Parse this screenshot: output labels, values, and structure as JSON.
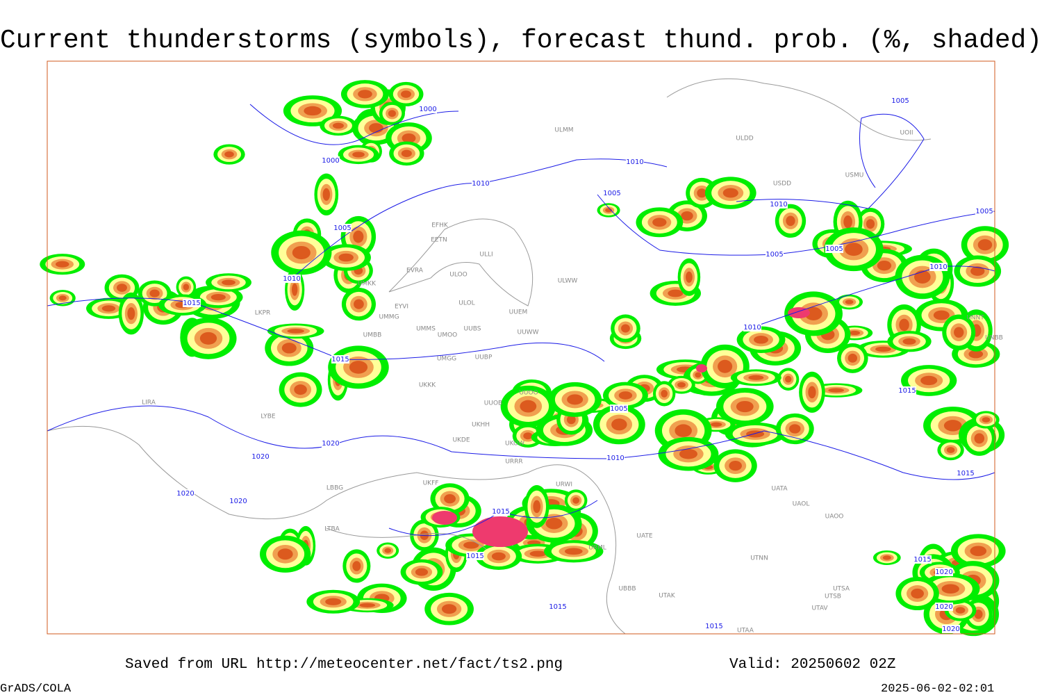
{
  "header": {
    "title": "Current thunderstorms (symbols), forecast thund. prob. (%, shaded)"
  },
  "map": {
    "isobar_labels": [
      "1000",
      "1000",
      "1010",
      "1010",
      "1005",
      "1005",
      "1005",
      "1010",
      "1005",
      "1005",
      "1005",
      "1010",
      "1010",
      "1015",
      "1010",
      "1015",
      "1015",
      "1005",
      "1020",
      "1010",
      "1020",
      "1015",
      "1020",
      "1020",
      "1015",
      "1015",
      "1015",
      "1020",
      "1015",
      "1020",
      "1015",
      "1020"
    ],
    "station_labels": [
      "ULMM",
      "ULDD",
      "UOII",
      "USDD",
      "USMU",
      "EFHK",
      "EETN",
      "ULLI",
      "EVRA",
      "ULOO",
      "UMKK",
      "EYVI",
      "ULOL",
      "UUEM",
      "ULWW",
      "UMMG",
      "UMMS",
      "UMOO",
      "UUBS",
      "UUWW",
      "UMBB",
      "UMGG",
      "UUBP",
      "UKKK",
      "UUOO",
      "UUOB",
      "UKHH",
      "UKDE",
      "UKOW",
      "URRR",
      "UKFF",
      "URWI",
      "URML",
      "UBBB",
      "UTAK",
      "UATE",
      "UATA",
      "UAOL",
      "UAOO",
      "UTNN",
      "UTSA",
      "UTSB",
      "UTAV",
      "UTAA",
      "LIRA",
      "LYBE",
      "LBBG",
      "LTBA",
      "UNNT",
      "UNBB",
      "LKPR"
    ]
  },
  "footer": {
    "source": "Saved from URL http://meteocenter.net/fact/ts2.png",
    "valid": "Valid: 20250602 02Z",
    "software": "GrADS/COLA",
    "timestamp": "2025-06-02-02:01"
  }
}
